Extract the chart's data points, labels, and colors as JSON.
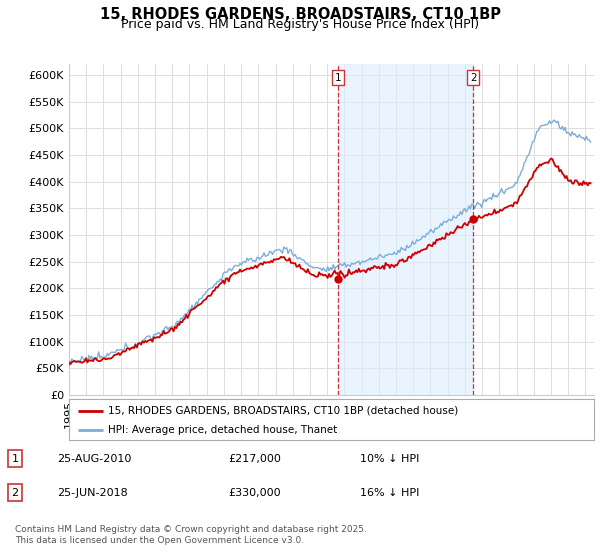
{
  "title": "15, RHODES GARDENS, BROADSTAIRS, CT10 1BP",
  "subtitle": "Price paid vs. HM Land Registry's House Price Index (HPI)",
  "ylabel_ticks": [
    "£0",
    "£50K",
    "£100K",
    "£150K",
    "£200K",
    "£250K",
    "£300K",
    "£350K",
    "£400K",
    "£450K",
    "£500K",
    "£550K",
    "£600K"
  ],
  "ytick_values": [
    0,
    50000,
    100000,
    150000,
    200000,
    250000,
    300000,
    350000,
    400000,
    450000,
    500000,
    550000,
    600000
  ],
  "ylim": [
    0,
    620000
  ],
  "xlim_start": 1995.0,
  "xlim_end": 2025.5,
  "marker1_x": 2010.65,
  "marker2_x": 2018.48,
  "marker1_label": "1",
  "marker2_label": "2",
  "marker1_y": 217000,
  "marker2_y": 330000,
  "annotation1": [
    "1",
    "25-AUG-2010",
    "£217,000",
    "10% ↓ HPI"
  ],
  "annotation2": [
    "2",
    "25-JUN-2018",
    "£330,000",
    "16% ↓ HPI"
  ],
  "legend_line1": "15, RHODES GARDENS, BROADSTAIRS, CT10 1BP (detached house)",
  "legend_line2": "HPI: Average price, detached house, Thanet",
  "footer": "Contains HM Land Registry data © Crown copyright and database right 2025.\nThis data is licensed under the Open Government Licence v3.0.",
  "line_red_color": "#cc0000",
  "line_blue_color": "#7aaddb",
  "shade_color": "#ddeeff",
  "background_color": "#ffffff",
  "grid_color": "#dddddd",
  "title_fontsize": 10.5,
  "subtitle_fontsize": 9,
  "tick_fontsize": 8
}
